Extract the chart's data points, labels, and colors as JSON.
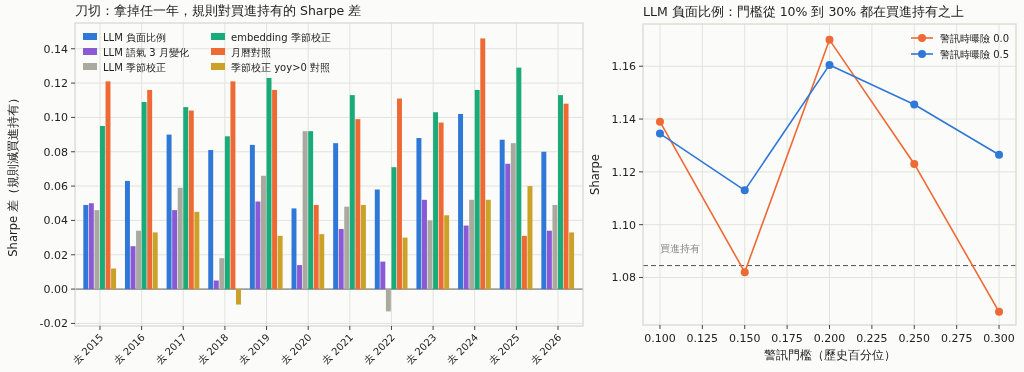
{
  "chart_data": [
    {
      "type": "bar",
      "title": "刀切：拿掉任一年，規則對買進持有的 Sharpe 差",
      "ylabel": "Sharpe 差（規則減買進持有）",
      "categories": [
        "去 2015",
        "去 2016",
        "去 2017",
        "去 2018",
        "去 2019",
        "去 2020",
        "去 2021",
        "去 2022",
        "去 2023",
        "去 2024",
        "去 2025",
        "去 2026"
      ],
      "series": [
        {
          "name": "LLM 負面比例",
          "color": "#2f78d8",
          "values": [
            0.049,
            0.063,
            0.09,
            0.081,
            0.084,
            0.047,
            0.085,
            0.058,
            0.088,
            0.102,
            0.087,
            0.08
          ]
        },
        {
          "name": "LLM 語氣 3 月變化",
          "color": "#8a5ad6",
          "values": [
            0.05,
            0.025,
            0.046,
            0.005,
            0.051,
            0.014,
            0.035,
            0.016,
            0.052,
            0.037,
            0.073,
            0.034
          ]
        },
        {
          "name": "LLM 季節校正",
          "color": "#a9a9a0",
          "values": [
            0.046,
            0.034,
            0.059,
            0.018,
            0.066,
            0.092,
            0.048,
            -0.013,
            0.04,
            0.052,
            0.085,
            0.049
          ]
        },
        {
          "name": "embedding 季節校正",
          "color": "#1aab7a",
          "values": [
            0.095,
            0.109,
            0.106,
            0.089,
            0.123,
            0.092,
            0.113,
            0.071,
            0.103,
            0.116,
            0.129,
            0.113
          ]
        },
        {
          "name": "月曆對照",
          "color": "#ee6a34",
          "values": [
            0.121,
            0.116,
            0.104,
            0.121,
            0.116,
            0.049,
            0.099,
            0.111,
            0.097,
            0.146,
            0.031,
            0.108
          ]
        },
        {
          "name": "季節校正 yoy>0 對照",
          "color": "#c9a227",
          "values": [
            0.012,
            0.033,
            0.045,
            -0.009,
            0.031,
            0.032,
            0.049,
            0.03,
            0.043,
            0.052,
            0.06,
            0.033
          ]
        }
      ],
      "ylim": [
        -0.0215,
        0.155
      ],
      "yticks": [
        {
          "value": -0.02,
          "label": "-0.02"
        },
        {
          "value": 0,
          "label": "0.00"
        },
        {
          "value": 0.02,
          "label": "0.02"
        },
        {
          "value": 0.04,
          "label": "0.04"
        },
        {
          "value": 0.06,
          "label": "0.06"
        },
        {
          "value": 0.08,
          "label": "0.08"
        },
        {
          "value": 0.1,
          "label": "0.10"
        },
        {
          "value": 0.12,
          "label": "0.12"
        },
        {
          "value": 0.14,
          "label": "0.14"
        }
      ],
      "ref_lines": [
        {
          "axis": "y",
          "value": 0,
          "color": "#666666"
        }
      ],
      "grid": true,
      "legend": "top left"
    },
    {
      "type": "line",
      "title": "LLM 負面比例：門檻從 10% 到 30% 都在買進持有之上",
      "xlabel": "警訊門檻（歷史百分位）",
      "ylabel": "Sharpe",
      "x": [
        0.1,
        0.15,
        0.2,
        0.25,
        0.3
      ],
      "series": [
        {
          "name": "警訊時曝險 0.0",
          "color": "#ee6a34",
          "values": [
            1.139,
            1.082,
            1.17,
            1.123,
            1.067
          ]
        },
        {
          "name": "警訊時曝險 0.5",
          "color": "#2f78d8",
          "values": [
            1.1345,
            1.113,
            1.1605,
            1.1455,
            1.1265
          ]
        }
      ],
      "xlim": [
        0.09,
        0.31
      ],
      "xticks": [
        {
          "value": 0.1,
          "label": "0.100"
        },
        {
          "value": 0.125,
          "label": "0.125"
        },
        {
          "value": 0.15,
          "label": "0.150"
        },
        {
          "value": 0.175,
          "label": "0.175"
        },
        {
          "value": 0.2,
          "label": "0.200"
        },
        {
          "value": 0.225,
          "label": "0.225"
        },
        {
          "value": 0.25,
          "label": "0.250"
        },
        {
          "value": 0.275,
          "label": "0.275"
        },
        {
          "value": 0.3,
          "label": "0.300"
        }
      ],
      "ylim": [
        1.062,
        1.176
      ],
      "yticks": [
        {
          "value": 1.08,
          "label": "1.08"
        },
        {
          "value": 1.1,
          "label": "1.10"
        },
        {
          "value": 1.12,
          "label": "1.12"
        },
        {
          "value": 1.14,
          "label": "1.14"
        },
        {
          "value": 1.16,
          "label": "1.16"
        }
      ],
      "ref_lines": [
        {
          "axis": "y",
          "value": 1.0845,
          "label": "買進持有",
          "color": "#555555",
          "line_style": "dashed"
        }
      ],
      "marker": "circle",
      "grid": true,
      "legend": "top right"
    }
  ]
}
